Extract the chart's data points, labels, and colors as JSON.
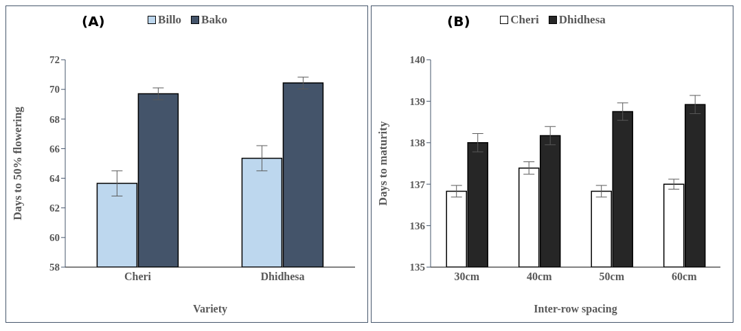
{
  "chart_data": [
    {
      "type": "bar",
      "title": "(A)",
      "xlabel": "Variety",
      "ylabel": "Days to 50% flowering",
      "categories": [
        "Cheri",
        "Dhidhesa"
      ],
      "series": [
        {
          "name": "Billo",
          "color": "#bdd7ee",
          "values": [
            63.65,
            65.35
          ],
          "errors": [
            0.85,
            0.85
          ]
        },
        {
          "name": "Bako",
          "color": "#44546a",
          "values": [
            69.7,
            70.43
          ],
          "errors": [
            0.4,
            0.4
          ]
        }
      ],
      "ylim": [
        58,
        72
      ],
      "yticks": [
        58,
        60,
        62,
        64,
        66,
        68,
        70,
        72
      ],
      "grid": false,
      "legend": "top"
    },
    {
      "type": "bar",
      "title": "(B)",
      "xlabel": "Inter-row spacing",
      "ylabel": "Days to maturity",
      "categories": [
        "30cm",
        "40cm",
        "50cm",
        "60cm"
      ],
      "series": [
        {
          "name": "Cheri",
          "color": "#ffffff",
          "values": [
            136.83,
            137.39,
            136.83,
            137.0
          ],
          "errors": [
            0.14,
            0.15,
            0.14,
            0.12
          ]
        },
        {
          "name": "Dhidhesa",
          "color": "#262626",
          "values": [
            138.0,
            138.17,
            138.75,
            138.92
          ],
          "errors": [
            0.22,
            0.22,
            0.21,
            0.22
          ]
        }
      ],
      "ylim": [
        135,
        140
      ],
      "yticks": [
        135,
        136,
        137,
        138,
        139,
        140
      ],
      "grid": false,
      "legend": "top"
    }
  ]
}
